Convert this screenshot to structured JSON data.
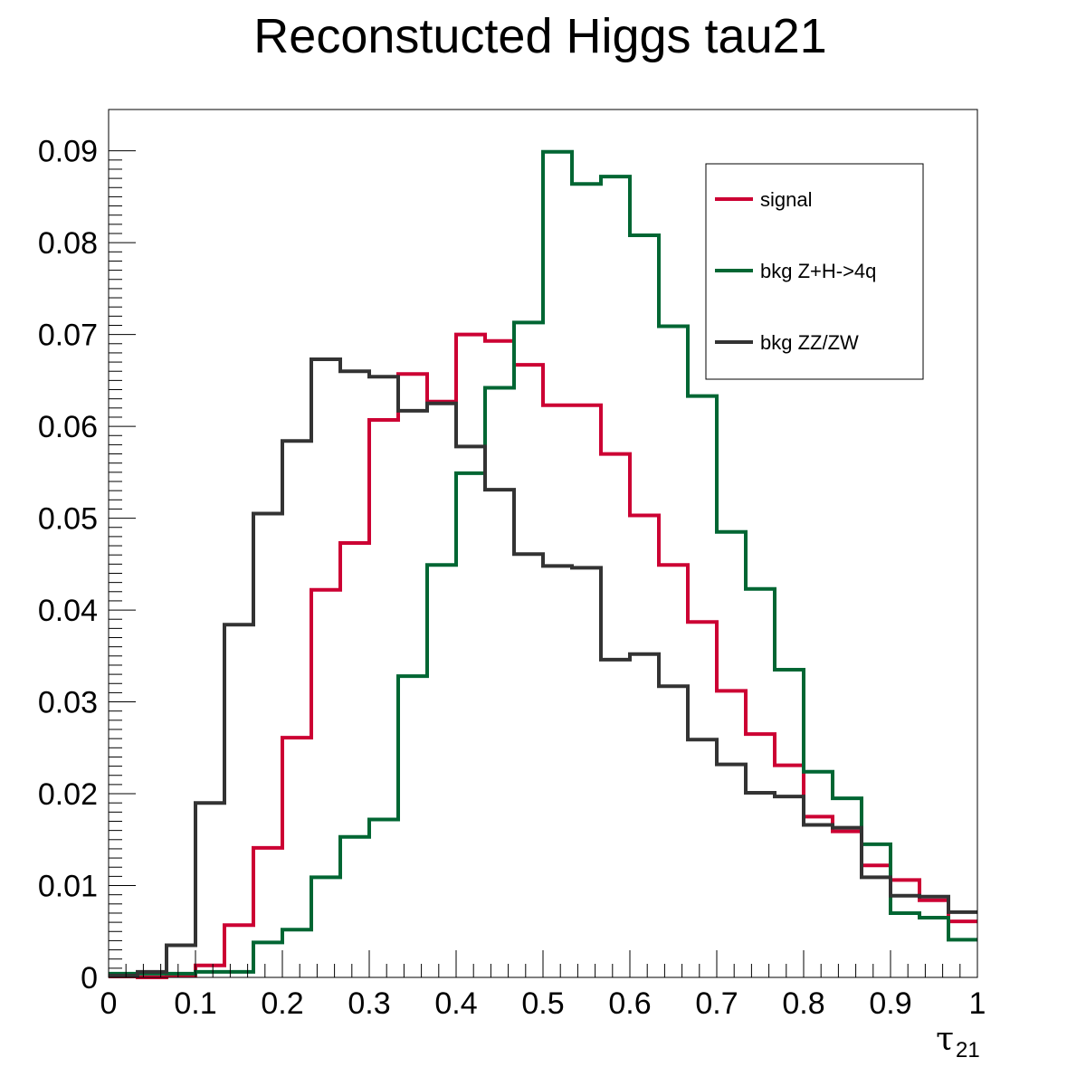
{
  "chart_data": {
    "type": "line",
    "title": "Reconstucted Higgs tau21",
    "xlabel": "τ",
    "xlabel_sub": "21",
    "ylabel": "",
    "xlim": [
      0,
      1
    ],
    "ylim": [
      0,
      0.0945
    ],
    "grid": false,
    "legend_position": "top-right",
    "x_ticks": [
      "0",
      "0.1",
      "0.2",
      "0.3",
      "0.4",
      "0.5",
      "0.6",
      "0.7",
      "0.8",
      "0.9",
      "1"
    ],
    "y_ticks": [
      "0",
      "0.01",
      "0.02",
      "0.03",
      "0.04",
      "0.05",
      "0.06",
      "0.07",
      "0.08",
      "0.09"
    ],
    "bin_edges": [
      0,
      0.0333,
      0.0667,
      0.1,
      0.1333,
      0.1667,
      0.2,
      0.2333,
      0.2667,
      0.3,
      0.3333,
      0.3667,
      0.4,
      0.4333,
      0.4667,
      0.5,
      0.5333,
      0.5667,
      0.6,
      0.6333,
      0.6667,
      0.7,
      0.7333,
      0.7667,
      0.8,
      0.8333,
      0.8667,
      0.9,
      0.9333,
      0.9667,
      1.0
    ],
    "series": [
      {
        "name": "signal",
        "color": "#cc0033",
        "values": [
          0.0001,
          0,
          0.0002,
          0.0013,
          0.0057,
          0.0141,
          0.0261,
          0.0422,
          0.0473,
          0.0607,
          0.0657,
          0.0627,
          0.07,
          0.0693,
          0.0667,
          0.0623,
          0.0623,
          0.057,
          0.0503,
          0.0449,
          0.0387,
          0.0312,
          0.0265,
          0.0231,
          0.0175,
          0.0159,
          0.0122,
          0.0106,
          0.0084,
          0.0061
        ]
      },
      {
        "name": "bkg Z+H->4q",
        "color": "#006633",
        "values": [
          0.0004,
          0.0004,
          0.0004,
          0.0006,
          0.0006,
          0.0038,
          0.0052,
          0.0109,
          0.0153,
          0.0172,
          0.0328,
          0.0449,
          0.0549,
          0.0642,
          0.0713,
          0.0899,
          0.0864,
          0.0872,
          0.0808,
          0.0709,
          0.0633,
          0.0485,
          0.0423,
          0.0335,
          0.0224,
          0.0195,
          0.0145,
          0.007,
          0.0065,
          0.0041
        ]
      },
      {
        "name": "bkg ZZ/ZW",
        "color": "#333333",
        "values": [
          0.0002,
          0.0006,
          0.0035,
          0.019,
          0.0384,
          0.0505,
          0.0584,
          0.0673,
          0.066,
          0.0654,
          0.0617,
          0.0625,
          0.0578,
          0.0531,
          0.0461,
          0.0448,
          0.0446,
          0.0346,
          0.0352,
          0.0317,
          0.0259,
          0.0232,
          0.0201,
          0.0197,
          0.0166,
          0.0163,
          0.0109,
          0.0089,
          0.0088,
          0.0071
        ]
      }
    ]
  }
}
